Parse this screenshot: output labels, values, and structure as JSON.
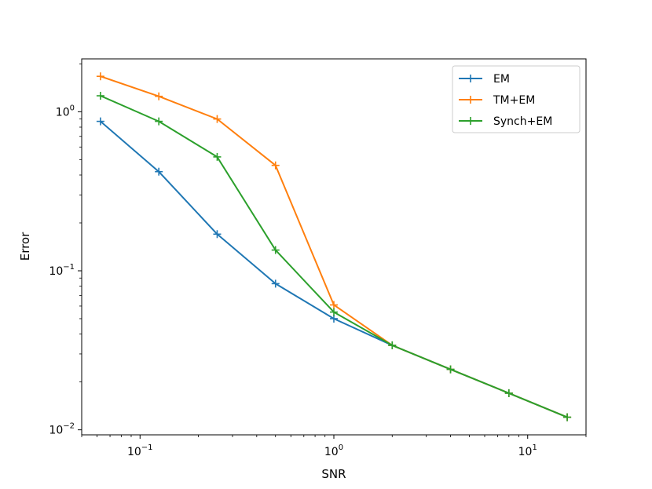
{
  "chart_data": {
    "type": "line",
    "xscale": "log",
    "yscale": "log",
    "xlabel": "SNR",
    "ylabel": "Error",
    "xlim": [
      0.05,
      20
    ],
    "ylim": [
      0.0093,
      2.15
    ],
    "grid": false,
    "legend_position": "top-right",
    "x_ticks": [
      {
        "value": 0.1,
        "base": "10",
        "exp": "−1"
      },
      {
        "value": 1,
        "base": "10",
        "exp": "0"
      },
      {
        "value": 10,
        "base": "10",
        "exp": "1"
      }
    ],
    "y_ticks": [
      {
        "value": 0.01,
        "base": "10",
        "exp": "−2"
      },
      {
        "value": 0.1,
        "base": "10",
        "exp": "−1"
      },
      {
        "value": 1,
        "base": "10",
        "exp": "0"
      }
    ],
    "x": [
      0.0625,
      0.125,
      0.25,
      0.5,
      1,
      2,
      4,
      8,
      16
    ],
    "series": [
      {
        "name": "EM",
        "color": "#1f77b4",
        "values": [
          0.87,
          0.42,
          0.17,
          0.083,
          0.05,
          0.034,
          0.024,
          0.017,
          0.012
        ]
      },
      {
        "name": "TM+EM",
        "color": "#ff7f0e",
        "values": [
          1.67,
          1.25,
          0.9,
          0.46,
          0.061,
          0.034,
          0.024,
          0.017,
          0.012
        ]
      },
      {
        "name": "Synch+EM",
        "color": "#2ca02c",
        "values": [
          1.26,
          0.87,
          0.52,
          0.135,
          0.055,
          0.034,
          0.024,
          0.017,
          0.012
        ]
      }
    ]
  }
}
